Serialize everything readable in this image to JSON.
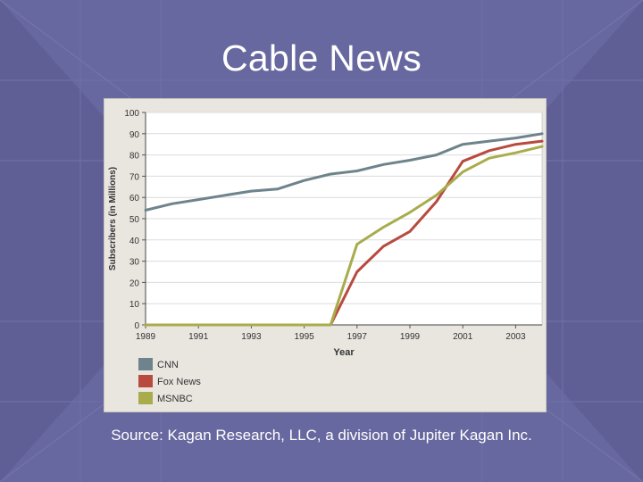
{
  "slide": {
    "title": "Cable News",
    "source": "Source: Kagan Research, LLC, a division of Jupiter Kagan Inc."
  },
  "colors": {
    "background": "#5f5f96",
    "cnn": "#6e838c",
    "fox": "#b84a3e",
    "msnbc": "#a8ac4c"
  },
  "chart_data": {
    "type": "line",
    "title": "",
    "xlabel": "Year",
    "ylabel": "Subscribers (in Millions)",
    "xlim": [
      1989,
      2004
    ],
    "ylim": [
      0,
      100
    ],
    "x_ticks": [
      "1989",
      "1991",
      "1993",
      "1995",
      "1997",
      "1999",
      "2001",
      "2003"
    ],
    "y_ticks": [
      "0",
      "10",
      "20",
      "30",
      "40",
      "50",
      "60",
      "70",
      "80",
      "90",
      "100"
    ],
    "grid": true,
    "legend_position": "bottom-left",
    "series": [
      {
        "name": "CNN",
        "color": "#6e838c",
        "x": [
          1989,
          1990,
          1991,
          1992,
          1993,
          1994,
          1995,
          1996,
          1997,
          1998,
          1999,
          2000,
          2001,
          2002,
          2003,
          2004
        ],
        "y": [
          54,
          57,
          59,
          61,
          63,
          64,
          68,
          71,
          72.5,
          75.5,
          77.5,
          80,
          85,
          86.5,
          88,
          90
        ]
      },
      {
        "name": "Fox News",
        "color": "#b84a3e",
        "x": [
          1989,
          1996,
          1997,
          1998,
          1999,
          2000,
          2001,
          2002,
          2003,
          2004
        ],
        "y": [
          0,
          0,
          25,
          37,
          44,
          58,
          77,
          82,
          85,
          86.5
        ]
      },
      {
        "name": "MSNBC",
        "color": "#a8ac4c",
        "x": [
          1989,
          1996,
          1997,
          1998,
          1999,
          2000,
          2001,
          2002,
          2003,
          2004
        ],
        "y": [
          0,
          0,
          38,
          46,
          53,
          61,
          72,
          78.5,
          81,
          84
        ]
      }
    ]
  }
}
